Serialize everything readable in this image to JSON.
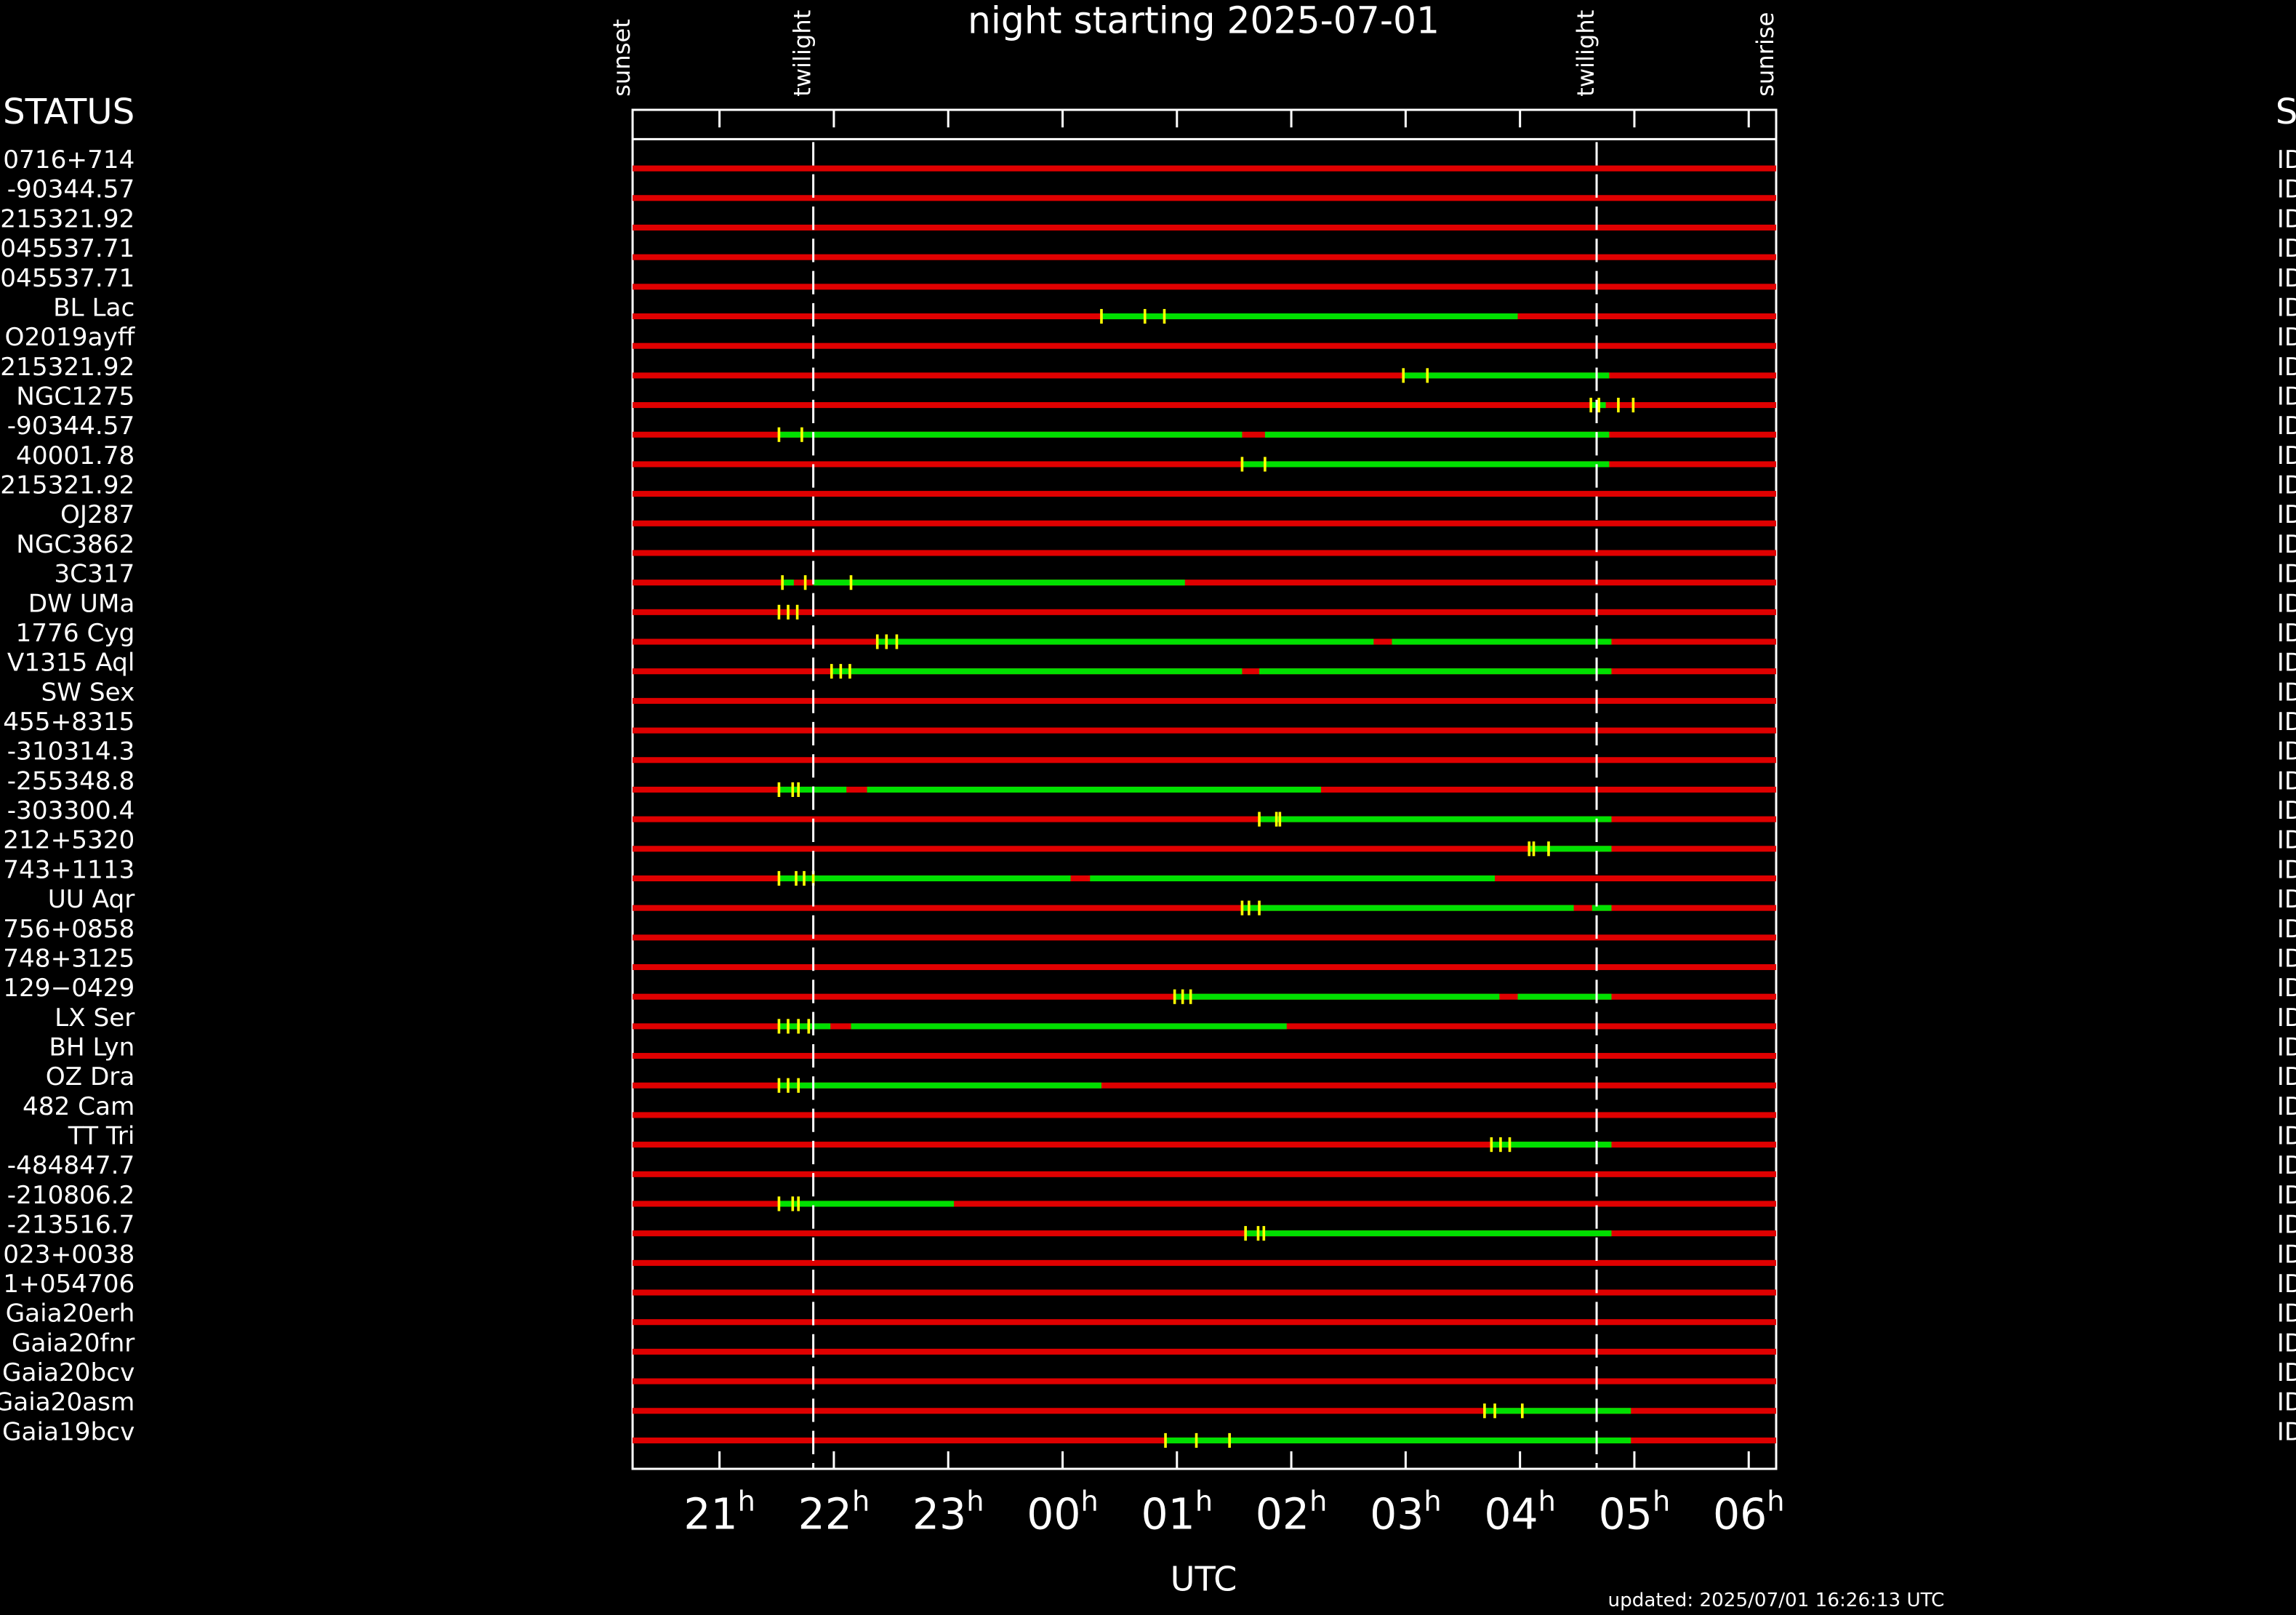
{
  "chart_data": {
    "type": "timeline",
    "title": "night starting 2025-07-01",
    "x_label": "UTC",
    "left_header": "STATUS",
    "right_header": "S",
    "footer": "updated: 2025/07/01 16:26:13 UTC",
    "xlim": [
      20.24,
      30.24
    ],
    "xticks": [
      {
        "value": 21,
        "label": "21"
      },
      {
        "value": 22,
        "label": "22"
      },
      {
        "value": 23,
        "label": "23"
      },
      {
        "value": 24,
        "label": "00"
      },
      {
        "value": 25,
        "label": "01"
      },
      {
        "value": 26,
        "label": "02"
      },
      {
        "value": 27,
        "label": "03"
      },
      {
        "value": 28,
        "label": "04"
      },
      {
        "value": 29,
        "label": "05"
      },
      {
        "value": 30,
        "label": "06"
      }
    ],
    "xtick_suffix": "h",
    "events": [
      {
        "label": "sunset",
        "x": 20.24,
        "dashed": false
      },
      {
        "label": "twilight",
        "x": 21.82,
        "dashed": true
      },
      {
        "label": "twilight",
        "x": 28.67,
        "dashed": true
      },
      {
        "label": "sunrise",
        "x": 30.24,
        "dashed": false
      }
    ],
    "colors": {
      "available": "#00e000",
      "unavailable": "#e00000",
      "mark": "#ffff00",
      "event_line": "#ffffff"
    },
    "rows": [
      {
        "name": "0716+714",
        "status": "ID",
        "segments": [],
        "marks": []
      },
      {
        "name": "-90344.57",
        "status": "ID",
        "segments": [],
        "marks": []
      },
      {
        "name": "215321.92",
        "status": "ID",
        "segments": [],
        "marks": []
      },
      {
        "name": "045537.71",
        "status": "ID",
        "segments": [],
        "marks": []
      },
      {
        "name": "045537.71",
        "status": "ID",
        "segments": [],
        "marks": []
      },
      {
        "name": "BL Lac",
        "status": "ID",
        "segments": [
          [
            24.34,
            27.98
          ]
        ],
        "marks": [
          24.34,
          24.72,
          24.89
        ]
      },
      {
        "name": "O2019ayff",
        "status": "ID",
        "segments": [],
        "marks": []
      },
      {
        "name": "215321.92",
        "status": "ID",
        "segments": [
          [
            26.98,
            28.78
          ]
        ],
        "marks": [
          26.98,
          27.19
        ]
      },
      {
        "name": "NGC1275",
        "status": "ID",
        "segments": [
          [
            28.62,
            28.75
          ]
        ],
        "marks": [
          28.62,
          28.69,
          28.86,
          28.99
        ]
      },
      {
        "name": "-90344.57",
        "status": "ID",
        "segments": [
          [
            21.52,
            25.57
          ],
          [
            25.77,
            28.78
          ]
        ],
        "marks": [
          21.52,
          21.72
        ]
      },
      {
        "name": "40001.78",
        "status": "ID",
        "segments": [
          [
            25.57,
            28.78
          ]
        ],
        "marks": [
          25.57,
          25.77
        ]
      },
      {
        "name": "215321.92",
        "status": "ID",
        "segments": [],
        "marks": []
      },
      {
        "name": "OJ287",
        "status": "ID",
        "segments": [],
        "marks": []
      },
      {
        "name": "NGC3862",
        "status": "ID",
        "segments": [],
        "marks": []
      },
      {
        "name": "3C317",
        "status": "ID",
        "segments": [
          [
            21.55,
            21.65
          ],
          [
            21.82,
            25.07
          ]
        ],
        "marks": [
          21.55,
          21.75,
          22.15
        ]
      },
      {
        "name": "DW UMa",
        "status": "ID",
        "segments": [],
        "marks": [
          21.52,
          21.6,
          21.68
        ]
      },
      {
        "name": "1776 Cyg",
        "status": "ID",
        "segments": [
          [
            22.38,
            26.72
          ],
          [
            26.88,
            28.8
          ]
        ],
        "marks": [
          22.38,
          22.46,
          22.55
        ]
      },
      {
        "name": "V1315 Aql",
        "status": "ID",
        "segments": [
          [
            21.98,
            25.57
          ],
          [
            25.72,
            28.8
          ]
        ],
        "marks": [
          21.98,
          22.06,
          22.14
        ]
      },
      {
        "name": "SW Sex",
        "status": "ID",
        "segments": [],
        "marks": []
      },
      {
        "name": "455+8315",
        "status": "ID",
        "segments": [],
        "marks": []
      },
      {
        "name": "-310314.3",
        "status": "ID",
        "segments": [],
        "marks": []
      },
      {
        "name": "-255348.8",
        "status": "ID",
        "segments": [
          [
            21.52,
            22.11
          ],
          [
            22.29,
            26.26
          ]
        ],
        "marks": [
          21.52,
          21.64,
          21.69
        ]
      },
      {
        "name": "-303300.4",
        "status": "ID",
        "segments": [
          [
            25.72,
            28.8
          ]
        ],
        "marks": [
          25.72,
          25.87,
          25.9
        ]
      },
      {
        "name": "212+5320",
        "status": "ID",
        "segments": [
          [
            28.08,
            28.8
          ]
        ],
        "marks": [
          28.08,
          28.12,
          28.25
        ]
      },
      {
        "name": "743+1113",
        "status": "ID",
        "segments": [
          [
            21.52,
            24.07
          ],
          [
            24.24,
            27.78
          ]
        ],
        "marks": [
          21.52,
          21.67,
          21.74,
          21.82
        ]
      },
      {
        "name": "UU Aqr",
        "status": "ID",
        "segments": [
          [
            25.57,
            28.47
          ],
          [
            28.63,
            28.8
          ]
        ],
        "marks": [
          25.57,
          25.63,
          25.72
        ]
      },
      {
        "name": "756+0858",
        "status": "ID",
        "segments": [],
        "marks": []
      },
      {
        "name": "748+3125",
        "status": "ID",
        "segments": [],
        "marks": []
      },
      {
        "name": "129−0429",
        "status": "ID",
        "segments": [
          [
            24.98,
            27.82
          ],
          [
            27.98,
            28.8
          ]
        ],
        "marks": [
          24.98,
          25.05,
          25.12
        ]
      },
      {
        "name": "LX Ser",
        "status": "ID",
        "segments": [
          [
            21.52,
            21.97
          ],
          [
            22.15,
            25.96
          ]
        ],
        "marks": [
          21.52,
          21.6,
          21.69,
          21.78
        ]
      },
      {
        "name": "BH Lyn",
        "status": "ID",
        "segments": [],
        "marks": []
      },
      {
        "name": "OZ Dra",
        "status": "ID",
        "segments": [
          [
            21.52,
            24.34
          ]
        ],
        "marks": [
          21.52,
          21.6,
          21.69
        ]
      },
      {
        "name": "482 Cam",
        "status": "ID",
        "segments": [],
        "marks": []
      },
      {
        "name": "TT Tri",
        "status": "ID",
        "segments": [
          [
            27.75,
            28.8
          ]
        ],
        "marks": [
          27.75,
          27.83,
          27.91
        ]
      },
      {
        "name": "-484847.7",
        "status": "ID",
        "segments": [],
        "marks": []
      },
      {
        "name": "-210806.2",
        "status": "ID",
        "segments": [
          [
            21.52,
            23.05
          ]
        ],
        "marks": [
          21.52,
          21.64,
          21.69
        ]
      },
      {
        "name": "-213516.7",
        "status": "ID",
        "segments": [
          [
            25.6,
            28.8
          ]
        ],
        "marks": [
          25.6,
          25.71,
          25.76
        ]
      },
      {
        "name": "023+0038",
        "status": "ID",
        "segments": [],
        "marks": []
      },
      {
        "name": "1+054706",
        "status": "ID",
        "segments": [],
        "marks": []
      },
      {
        "name": "Gaia20erh",
        "status": "ID",
        "segments": [],
        "marks": []
      },
      {
        "name": "Gaia20fnr",
        "status": "ID",
        "segments": [],
        "marks": []
      },
      {
        "name": "Gaia20bcv",
        "status": "ID",
        "segments": [],
        "marks": []
      },
      {
        "name": "Gaia20asm",
        "status": "ID",
        "segments": [
          [
            27.69,
            28.97
          ]
        ],
        "marks": [
          27.69,
          27.78,
          28.02
        ]
      },
      {
        "name": "Gaia19bcv",
        "status": "ID",
        "segments": [
          [
            24.9,
            28.97
          ]
        ],
        "marks": [
          24.9,
          25.17,
          25.46
        ]
      }
    ]
  }
}
